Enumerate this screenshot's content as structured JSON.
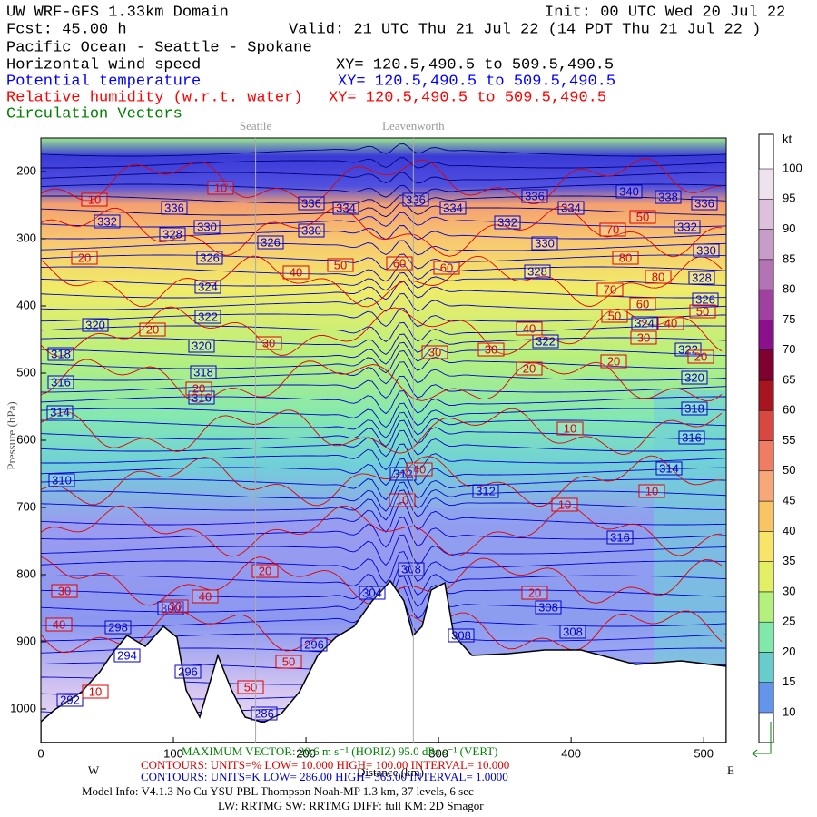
{
  "chart_data": {
    "type": "cross-section",
    "header": {
      "model": {
        "text": "UW WRF-GFS 1.33km Domain",
        "color": "#000000"
      },
      "init": {
        "text": "Init: 00 UTC Wed 20 Jul 22",
        "color": "#000000"
      },
      "fcst": {
        "text": "Fcst:    45.00 h",
        "color": "#000000"
      },
      "valid": {
        "text": "Valid: 21 UTC Thu 21 Jul 22   (14 PDT Thu 21 Jul 22  )",
        "color": "#000000"
      },
      "route": {
        "text": "Pacific Ocean - Seattle - Spokane",
        "color": "#000000"
      }
    },
    "fields": [
      {
        "name": "Horizontal wind speed",
        "xy": "XY=  120.5,490.5 to 509.5,490.5",
        "color": "#000000"
      },
      {
        "name": "Potential temperature",
        "xy": "XY= 120.5,490.5 to 509.5,490.5",
        "color": "#0000ff"
      },
      {
        "name": "Relative humidity (w.r.t. water)",
        "xy": "XY= 120.5,490.5 to 509.5,490.5",
        "color": "#ff0000"
      },
      {
        "name": "Circulation Vectors",
        "xy": null,
        "color": "#008000"
      }
    ],
    "places": [
      {
        "name": "Seattle",
        "x": 162
      },
      {
        "name": "Leavenworth",
        "x": 281
      }
    ],
    "xlim": [
      0,
      517
    ],
    "xticks": [
      0,
      100,
      200,
      300,
      400,
      500
    ],
    "ylim": [
      150,
      1050
    ],
    "yticks": [
      200,
      300,
      400,
      500,
      600,
      700,
      800,
      900,
      1000
    ],
    "xlabel": "Distance (km)",
    "ylabel": "Pressure (hPa)",
    "west": "W",
    "east": "E",
    "colorbar": {
      "unit": "kt",
      "levels": [
        10,
        15,
        20,
        25,
        30,
        35,
        40,
        45,
        50,
        55,
        60,
        65,
        70,
        75,
        80,
        85,
        90,
        95,
        100
      ],
      "colors": [
        "#6495ed",
        "#66cccc",
        "#80e8a8",
        "#b4f07c",
        "#e4f064",
        "#f8e468",
        "#f8c464",
        "#f8a878",
        "#f07c64",
        "#d84840",
        "#a81420",
        "#800030",
        "#8c108c",
        "#a040a0",
        "#b474b4",
        "#c89cc8",
        "#dcc0dc",
        "#eee2ee"
      ]
    },
    "contour_labels": {
      "theta": [
        332,
        336,
        336,
        334,
        336,
        334,
        336,
        334,
        340,
        338,
        336,
        328,
        330,
        326,
        330,
        332,
        332,
        330,
        330,
        326,
        328,
        328,
        324,
        326,
        322,
        320,
        324,
        322,
        322,
        320,
        318,
        318,
        316,
        316,
        320,
        314,
        318,
        316,
        314,
        310,
        312,
        316,
        304,
        308,
        308,
        308,
        298,
        296,
        296,
        294,
        292,
        286,
        312,
        308,
        300
      ],
      "rh": [
        10,
        10,
        20,
        20,
        40,
        50,
        60,
        60,
        70,
        50,
        80,
        80,
        70,
        60,
        50,
        40,
        30,
        50,
        20,
        40,
        30,
        30,
        30,
        20,
        20,
        20,
        10,
        10,
        10,
        10,
        20,
        40,
        30,
        40,
        20,
        50,
        50,
        10,
        30,
        40
      ]
    },
    "footer": {
      "vector": "MAXIMUM VECTOR: 20.6 m s⁻¹ (HORIZ)       95.0 dPa s⁻¹ (VERT)",
      "rh_contours": "CONTOURS:  UNITS=%  LOW=   10.000     HIGH=   100.00     INTERVAL=    10.000",
      "theta_contours": "CONTOURS:  UNITS=K  LOW=   286.00     HIGH=   365.00     INTERVAL=    1.0000",
      "model_info": "Model Info: V4.1.3    No Cu    YSU PBL   Thompson      Noah-MP    1.3 km,   37 levels,     6 sec",
      "physics": "LW: RRTMG  SW: RRTMG    DIFF: full    KM: 2D Smagor"
    }
  }
}
